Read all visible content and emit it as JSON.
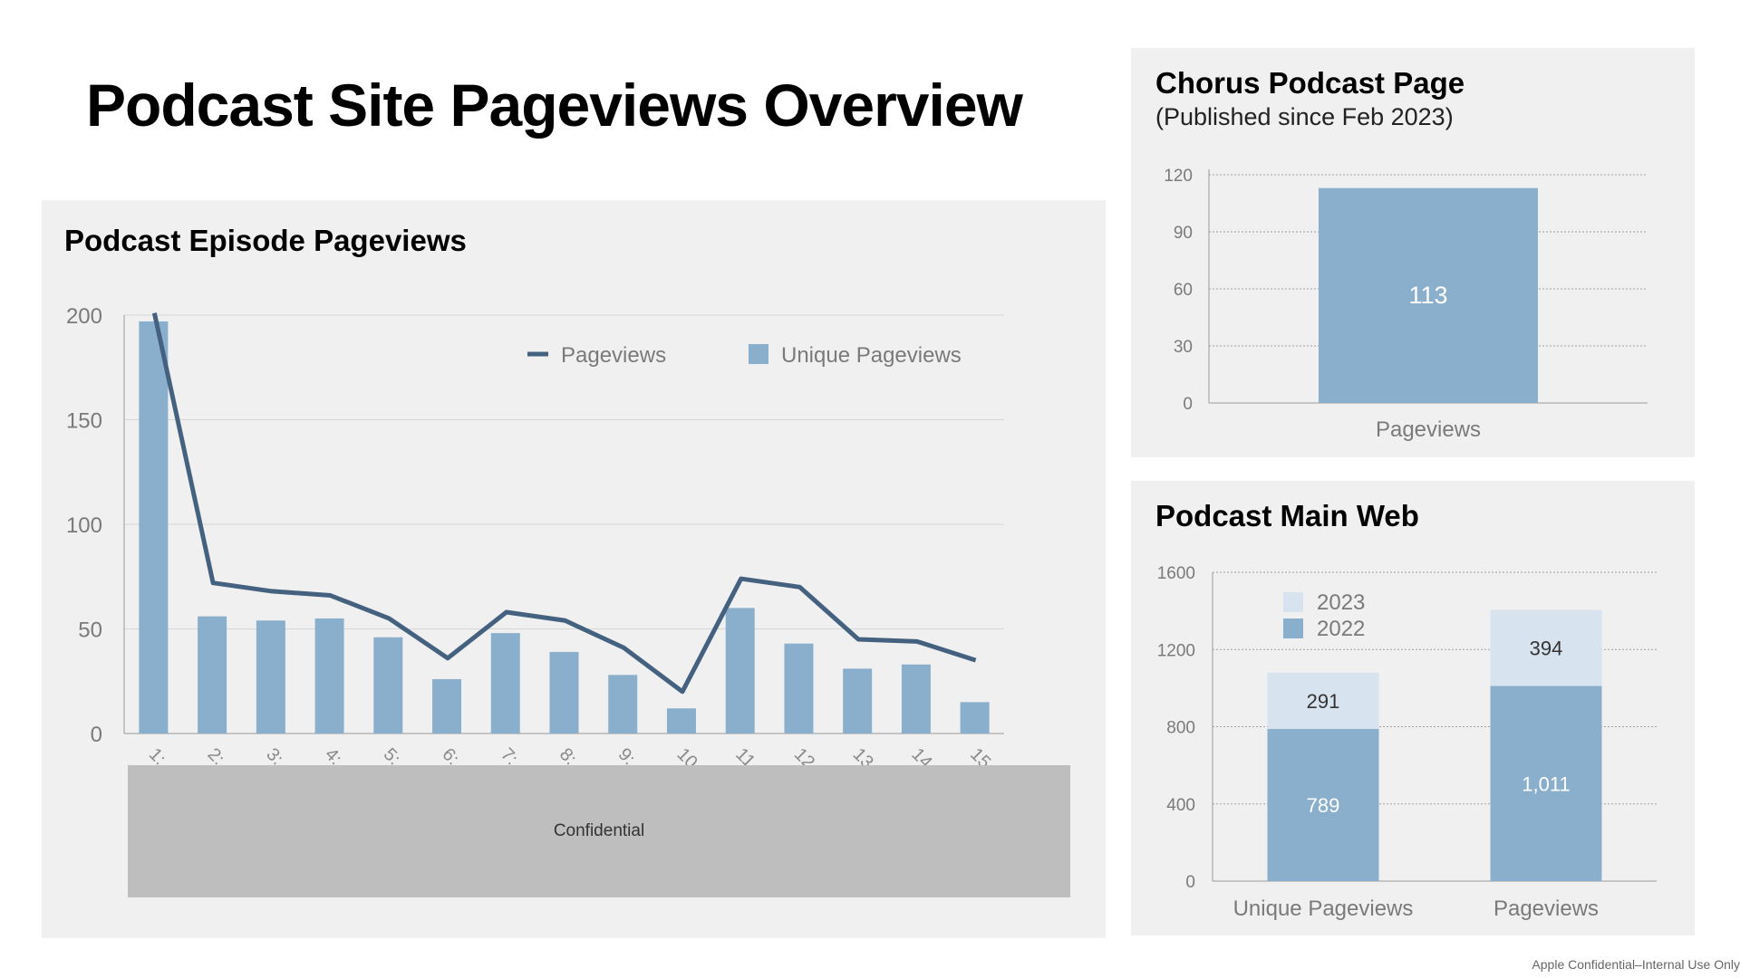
{
  "page_title": "Podcast Site Pageviews Overview",
  "footer_note": "Apple Confidential–Internal Use Only",
  "confidential_label": "Confidential",
  "colors": {
    "bar": "#8aafcd",
    "bar_light": "#d7e3ee",
    "line": "#44627f",
    "panel_bg": "#f0f0f0",
    "axis_text": "#7a7a7a"
  },
  "chart_data": [
    {
      "id": "episodes",
      "type": "bar",
      "title": "Podcast Episode Pageviews",
      "categories": [
        "1:",
        "2:",
        "3:",
        "4:",
        "5:",
        "6:",
        "7:",
        "8:",
        "9:",
        "10",
        "11",
        "12",
        "13",
        "14",
        "15"
      ],
      "series": [
        {
          "name": "Pageviews",
          "kind": "line",
          "values": [
            201,
            72,
            68,
            66,
            55,
            36,
            58,
            54,
            41,
            20,
            74,
            70,
            45,
            44,
            35
          ]
        },
        {
          "name": "Unique Pageviews",
          "kind": "bar",
          "values": [
            197,
            56,
            54,
            55,
            46,
            26,
            48,
            39,
            28,
            12,
            60,
            43,
            31,
            33,
            15
          ]
        }
      ],
      "y_ticks": [
        "200",
        "150",
        "100",
        "50",
        "0"
      ],
      "ylim": [
        0,
        200
      ],
      "grid": true,
      "legend": "top-right"
    },
    {
      "id": "chorus",
      "type": "bar",
      "title": "Chorus Podcast Page",
      "subtitle": "(Published since Feb 2023)",
      "categories": [
        "Pageviews"
      ],
      "values": [
        113
      ],
      "value_labels": [
        "113"
      ],
      "y_ticks": [
        "120",
        "90",
        "60",
        "30",
        "0"
      ],
      "ylim": [
        0,
        120
      ],
      "grid": true
    },
    {
      "id": "mainweb",
      "type": "bar",
      "stacked": true,
      "title": "Podcast Main Web",
      "categories": [
        "Unique Pageviews",
        "Pageviews"
      ],
      "series": [
        {
          "name": "2022",
          "values": [
            789,
            1011
          ],
          "value_labels": [
            "789",
            "1,011"
          ]
        },
        {
          "name": "2023",
          "values": [
            291,
            394
          ],
          "value_labels": [
            "291",
            "394"
          ]
        }
      ],
      "y_ticks": [
        "1600",
        "1200",
        "800",
        "400",
        "0"
      ],
      "ylim": [
        0,
        1600
      ],
      "grid": true,
      "legend": "top-left"
    }
  ]
}
